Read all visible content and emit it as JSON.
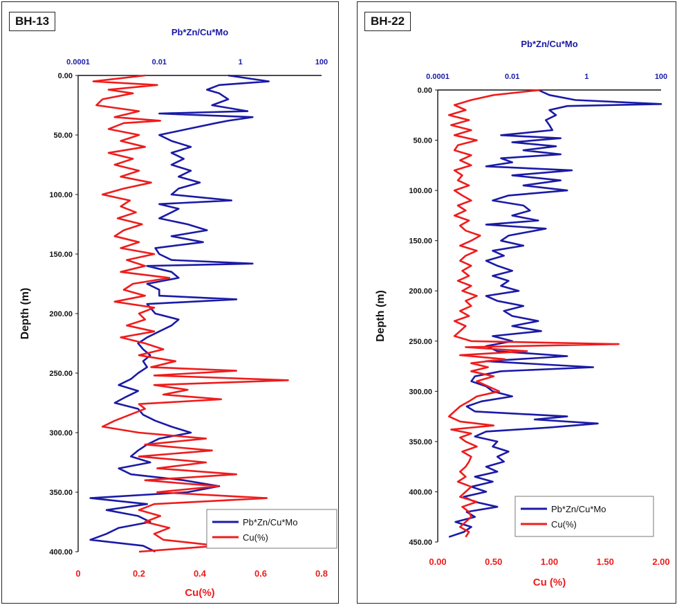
{
  "chart_data": [
    {
      "type": "line",
      "orientation": "depth-log",
      "title": "BH-13",
      "top_axis_label": "Pb*Zn/Cu*Mo",
      "top_axis_scale": "log",
      "top_ticks": [
        "0.0001",
        "0.01",
        "1",
        "100"
      ],
      "xlabel": "Cu(%)",
      "xlim": [
        0,
        0.8
      ],
      "x_ticks": [
        "0",
        "0.2",
        "0.4",
        "0.6",
        "0.8"
      ],
      "ylabel": "Depth (m)",
      "ylim": [
        0,
        400
      ],
      "y_ticks": [
        "0.00",
        "50.00",
        "100.00",
        "150.00",
        "200.00",
        "250.00",
        "300.00",
        "350.00",
        "400.00"
      ],
      "legend_position": "bottom-right",
      "series": [
        {
          "name": "Pb*Zn/Cu*Mo",
          "color": "#1a1aa6",
          "axis": "top",
          "depth": [
            0,
            5,
            8,
            12,
            15,
            20,
            25,
            30,
            32,
            35,
            38,
            40,
            45,
            50,
            55,
            60,
            65,
            70,
            75,
            80,
            85,
            90,
            95,
            100,
            105,
            108,
            112,
            115,
            120,
            125,
            130,
            135,
            140,
            145,
            150,
            155,
            158,
            160,
            165,
            170,
            175,
            180,
            185,
            188,
            192,
            200,
            205,
            210,
            215,
            220,
            225,
            230,
            235,
            240,
            245,
            250,
            255,
            260,
            265,
            270,
            275,
            280,
            285,
            290,
            295,
            300,
            305,
            310,
            315,
            320,
            325,
            330,
            335,
            340,
            345,
            350,
            355,
            360,
            365,
            370,
            375,
            380,
            385,
            390,
            395,
            400
          ],
          "values": [
            0.5,
            5,
            0.3,
            0.15,
            0.3,
            0.5,
            0.2,
            1.5,
            0.01,
            2,
            0.5,
            0.25,
            0.05,
            0.01,
            0.02,
            0.06,
            0.02,
            0.04,
            0.02,
            0.06,
            0.03,
            0.1,
            0.03,
            0.02,
            0.6,
            0.01,
            0.03,
            0.02,
            0.01,
            0.05,
            0.15,
            0.02,
            0.12,
            0.008,
            0.01,
            0.02,
            2,
            0.005,
            0.02,
            0.03,
            0.005,
            0.01,
            0.01,
            0.8,
            0.005,
            0.008,
            0.03,
            0.02,
            0.01,
            0.005,
            0.003,
            0.004,
            0.006,
            0.004,
            0.005,
            0.003,
            0.002,
            0.001,
            0.003,
            0.0015,
            0.0008,
            0.003,
            0.004,
            0.008,
            0.02,
            0.06,
            0.01,
            0.005,
            0.003,
            0.002,
            0.006,
            0.001,
            0.002,
            0.04,
            0.3,
            0.05,
            0.0002,
            0.005,
            0.0005,
            0.003,
            0.006,
            0.001,
            0.0005,
            0.0002,
            0.004,
            0.008
          ]
        },
        {
          "name": "Cu(%)",
          "color": "#ee1c1c",
          "axis": "bottom",
          "depth": [
            0,
            5,
            8,
            12,
            15,
            20,
            25,
            30,
            35,
            38,
            40,
            45,
            50,
            55,
            60,
            65,
            70,
            75,
            80,
            85,
            90,
            95,
            100,
            105,
            110,
            115,
            120,
            125,
            130,
            135,
            140,
            145,
            150,
            155,
            160,
            165,
            170,
            175,
            180,
            185,
            190,
            195,
            200,
            205,
            210,
            215,
            220,
            225,
            230,
            235,
            240,
            245,
            248,
            252,
            256,
            260,
            264,
            268,
            272,
            276,
            280,
            285,
            290,
            295,
            300,
            305,
            310,
            315,
            320,
            325,
            330,
            335,
            340,
            345,
            350,
            355,
            360,
            365,
            370,
            375,
            380,
            385,
            390,
            395,
            400
          ],
          "values": [
            0.22,
            0.05,
            0.26,
            0.1,
            0.18,
            0.08,
            0.06,
            0.2,
            0.12,
            0.27,
            0.15,
            0.1,
            0.2,
            0.14,
            0.22,
            0.1,
            0.18,
            0.12,
            0.2,
            0.14,
            0.24,
            0.15,
            0.08,
            0.17,
            0.14,
            0.19,
            0.13,
            0.21,
            0.15,
            0.12,
            0.2,
            0.14,
            0.25,
            0.16,
            0.22,
            0.14,
            0.3,
            0.18,
            0.15,
            0.22,
            0.12,
            0.25,
            0.2,
            0.22,
            0.16,
            0.25,
            0.14,
            0.22,
            0.28,
            0.2,
            0.32,
            0.24,
            0.52,
            0.25,
            0.69,
            0.25,
            0.36,
            0.28,
            0.47,
            0.2,
            0.22,
            0.17,
            0.12,
            0.08,
            0.2,
            0.42,
            0.22,
            0.44,
            0.2,
            0.42,
            0.26,
            0.52,
            0.22,
            0.46,
            0.26,
            0.62,
            0.25,
            0.2,
            0.27,
            0.22,
            0.3,
            0.25,
            0.28,
            0.46,
            0.2
          ]
        }
      ]
    },
    {
      "type": "line",
      "orientation": "depth-log",
      "title": "BH-22",
      "top_axis_label": "Pb*Zn/Cu*Mo",
      "top_axis_scale": "log",
      "top_ticks": [
        "0.0001",
        "0.01",
        "1",
        "100"
      ],
      "xlabel": "Cu (%)",
      "xlim": [
        0,
        2
      ],
      "x_ticks": [
        "0.00",
        "0.50",
        "1.00",
        "1.50",
        "2.00"
      ],
      "ylabel": "Depth (m)",
      "ylim": [
        0,
        450
      ],
      "y_ticks": [
        "0.00",
        "50.00",
        "100.00",
        "150.00",
        "200.00",
        "250.00",
        "300.00",
        "350.00",
        "400.00",
        "450.00"
      ],
      "legend_position": "bottom-right",
      "series": [
        {
          "name": "Pb*Zn/Cu*Mo",
          "color": "#1a1aa6",
          "axis": "top",
          "depth": [
            0,
            5,
            10,
            14,
            16,
            20,
            25,
            30,
            35,
            40,
            45,
            48,
            52,
            56,
            60,
            64,
            68,
            72,
            76,
            80,
            85,
            90,
            95,
            100,
            105,
            110,
            115,
            120,
            125,
            130,
            134,
            138,
            145,
            150,
            155,
            160,
            165,
            170,
            175,
            180,
            185,
            190,
            195,
            200,
            205,
            210,
            215,
            220,
            225,
            230,
            235,
            240,
            245,
            250,
            255,
            260,
            265,
            270,
            276,
            280,
            285,
            290,
            295,
            300,
            305,
            310,
            315,
            320,
            325,
            328,
            332,
            336,
            340,
            345,
            350,
            355,
            360,
            365,
            370,
            375,
            380,
            385,
            390,
            395,
            400,
            405,
            410,
            415,
            420,
            425,
            430,
            435,
            440,
            445
          ],
          "values": [
            0.05,
            0.1,
            0.5,
            100,
            0.3,
            0.1,
            0.15,
            0.08,
            0.1,
            0.12,
            0.005,
            0.2,
            0.01,
            0.15,
            0.02,
            0.2,
            0.005,
            0.01,
            0.002,
            0.4,
            0.01,
            0.2,
            0.02,
            0.3,
            0.008,
            0.003,
            0.02,
            0.03,
            0.01,
            0.05,
            0.002,
            0.08,
            0.008,
            0.005,
            0.02,
            0.003,
            0.006,
            0.002,
            0.004,
            0.01,
            0.003,
            0.008,
            0.005,
            0.015,
            0.002,
            0.004,
            0.02,
            0.006,
            0.01,
            0.05,
            0.01,
            0.06,
            0.003,
            0.01,
            0.002,
            0.004,
            0.3,
            0.002,
            1.5,
            0.005,
            0.001,
            0.0008,
            0.002,
            0.003,
            0.01,
            0.0015,
            0.0006,
            0.001,
            0.3,
            0.04,
            2,
            0.1,
            0.002,
            0.001,
            0.004,
            0.003,
            0.008,
            0.004,
            0.006,
            0.002,
            0.004,
            0.001,
            0.003,
            0.0008,
            0.002,
            0.0005,
            0.001,
            0.004,
            0.0006,
            0.001,
            0.0003,
            0.0008,
            0.0005,
            0.0002
          ]
        },
        {
          "name": "Cu(%)",
          "color": "#ee1c1c",
          "axis": "bottom",
          "depth": [
            0,
            5,
            10,
            15,
            20,
            25,
            30,
            35,
            40,
            45,
            50,
            55,
            60,
            65,
            70,
            75,
            80,
            85,
            90,
            95,
            100,
            105,
            110,
            115,
            120,
            125,
            130,
            135,
            140,
            145,
            150,
            155,
            160,
            165,
            170,
            175,
            180,
            185,
            190,
            195,
            200,
            205,
            210,
            215,
            220,
            225,
            230,
            235,
            240,
            245,
            250,
            253,
            256,
            260,
            264,
            268,
            272,
            276,
            280,
            285,
            290,
            295,
            300,
            305,
            310,
            315,
            320,
            325,
            330,
            334,
            338,
            342,
            346,
            350,
            355,
            360,
            365,
            370,
            375,
            380,
            385,
            390,
            395,
            400,
            405,
            410,
            415,
            420,
            425,
            430,
            435,
            440,
            445
          ],
          "values": [
            0.92,
            0.5,
            0.3,
            0.15,
            0.25,
            0.1,
            0.28,
            0.12,
            0.3,
            0.15,
            0.35,
            0.18,
            0.15,
            0.3,
            0.2,
            0.3,
            0.15,
            0.22,
            0.18,
            0.28,
            0.15,
            0.22,
            0.3,
            0.18,
            0.25,
            0.15,
            0.28,
            0.2,
            0.25,
            0.38,
            0.3,
            0.2,
            0.35,
            0.25,
            0.2,
            0.3,
            0.22,
            0.28,
            0.18,
            0.3,
            0.22,
            0.35,
            0.25,
            0.3,
            0.2,
            0.28,
            0.15,
            0.25,
            0.2,
            0.15,
            0.3,
            1.62,
            0.25,
            0.8,
            0.2,
            0.6,
            0.3,
            0.45,
            0.3,
            0.5,
            0.35,
            0.45,
            0.55,
            0.35,
            0.28,
            0.2,
            0.15,
            0.1,
            0.2,
            0.5,
            0.12,
            0.3,
            0.2,
            0.25,
            0.35,
            0.22,
            0.3,
            0.28,
            0.25,
            0.2,
            0.25,
            0.18,
            0.3,
            0.25,
            0.2,
            0.35,
            0.22,
            0.28,
            0.3,
            0.25,
            0.2,
            0.28,
            0.25
          ]
        }
      ]
    }
  ]
}
